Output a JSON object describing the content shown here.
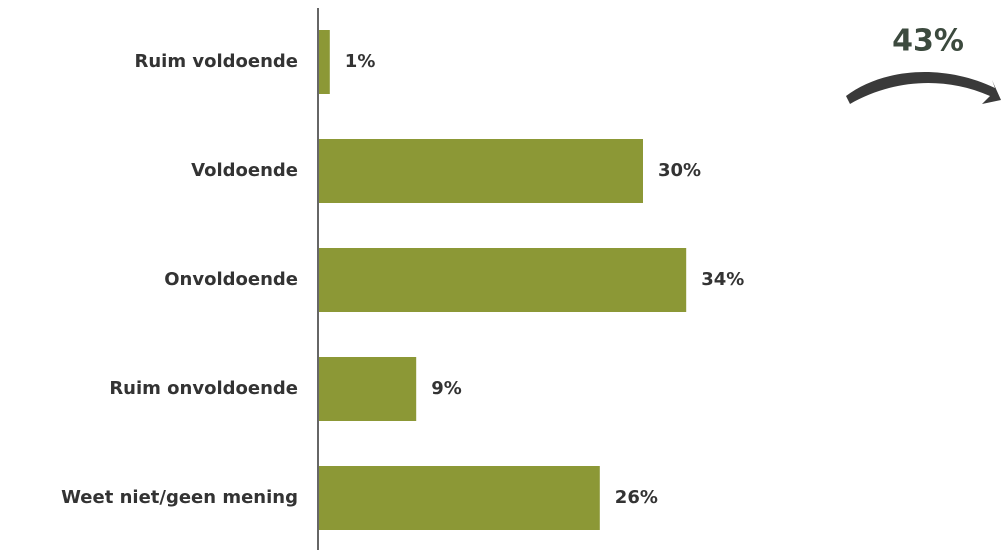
{
  "chart_data": {
    "type": "hbar",
    "categories": [
      "Ruim voldoende",
      "Voldoende",
      "Onvoldoende",
      "Ruim onvoldoende",
      "Weet niet/geen mening"
    ],
    "values": [
      1,
      30,
      34,
      9,
      26
    ],
    "value_labels": [
      "1%",
      "30%",
      "34%",
      "9%",
      "26%"
    ],
    "color": "#8c9836",
    "annotation": "43%"
  }
}
